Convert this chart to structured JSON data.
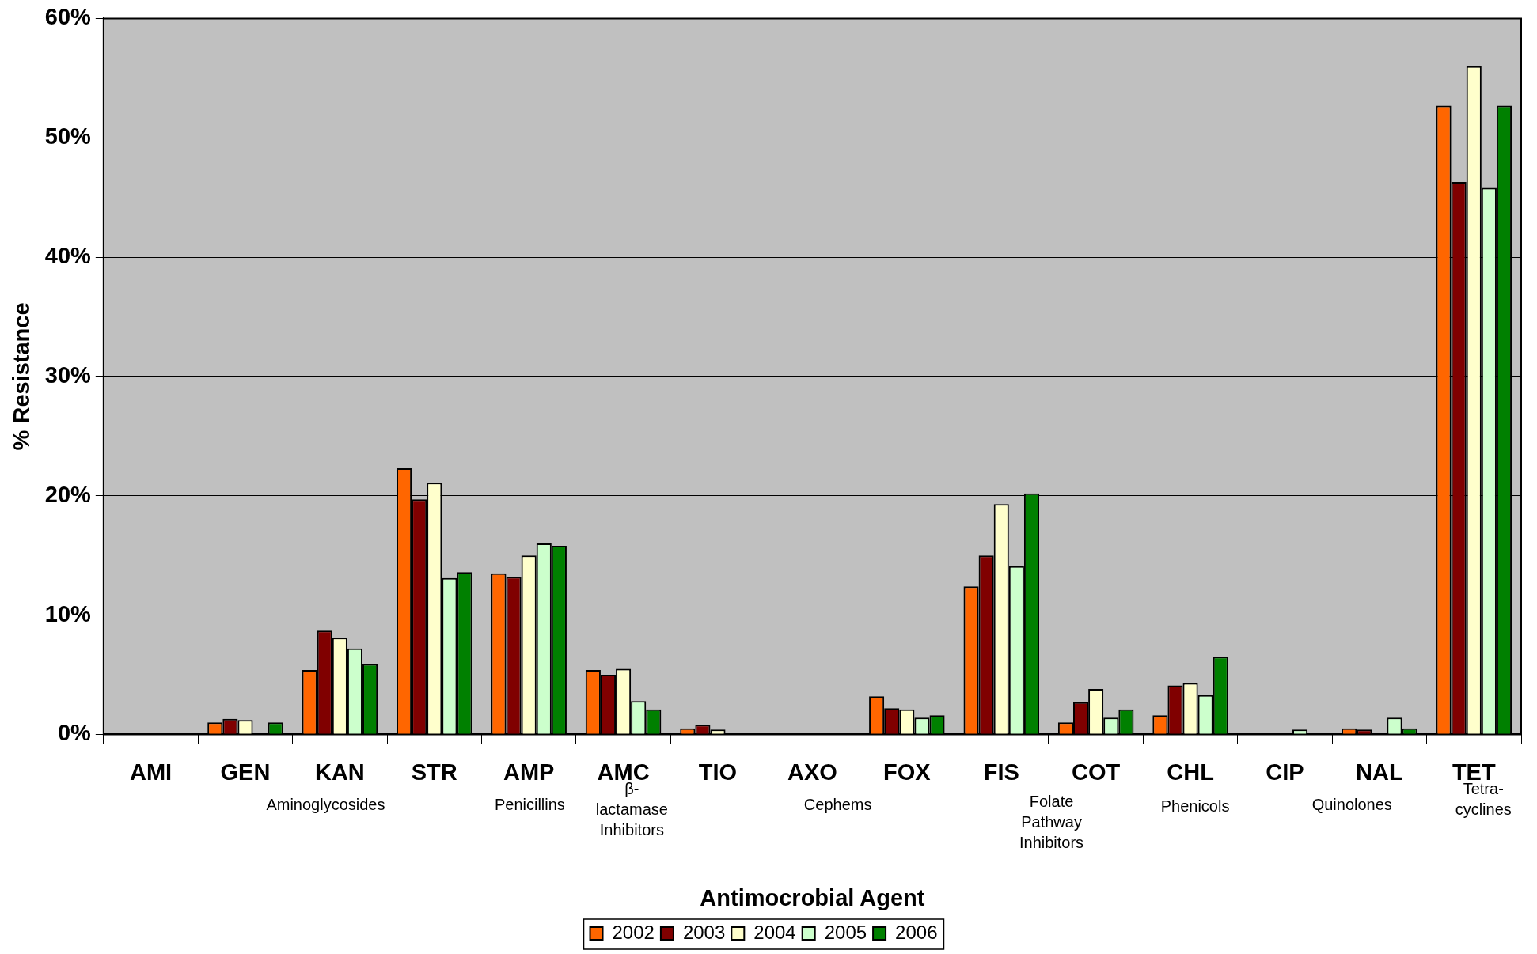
{
  "chart_data": {
    "type": "bar",
    "xlabel": "Antimocrobial Agent",
    "ylabel": "% Resistance",
    "categories": [
      "AMI",
      "GEN",
      "KAN",
      "STR",
      "AMP",
      "AMC",
      "TIO",
      "AXO",
      "FOX",
      "FIS",
      "COT",
      "CHL",
      "CIP",
      "NAL",
      "TET"
    ],
    "series": [
      {
        "name": "2002",
        "color": "#ff6600",
        "values": [
          0,
          1.0,
          5.4,
          22.3,
          13.5,
          5.4,
          0.5,
          0,
          3.2,
          12.4,
          1.0,
          1.6,
          0,
          0.5,
          52.7
        ]
      },
      {
        "name": "2003",
        "color": "#800000",
        "values": [
          0,
          1.3,
          8.7,
          19.7,
          13.2,
          5.0,
          0.8,
          0,
          2.2,
          15.0,
          2.7,
          4.1,
          0,
          0.4,
          46.3
        ]
      },
      {
        "name": "2004",
        "color": "#ffffcc",
        "values": [
          0,
          1.2,
          8.1,
          21.1,
          15.0,
          5.5,
          0.4,
          0,
          2.1,
          19.3,
          3.8,
          4.3,
          0,
          0,
          56.0
        ]
      },
      {
        "name": "2005",
        "color": "#ccffcc",
        "values": [
          0,
          0,
          7.2,
          13.1,
          16.0,
          2.8,
          0,
          0,
          1.4,
          14.1,
          1.4,
          3.3,
          0.4,
          1.4,
          45.8
        ]
      },
      {
        "name": "2006",
        "color": "#008000",
        "values": [
          0,
          1.0,
          5.9,
          13.6,
          15.8,
          2.1,
          0,
          0,
          1.6,
          20.2,
          2.1,
          6.5,
          0,
          0.5,
          52.7
        ]
      }
    ],
    "ylim": [
      0,
      60
    ],
    "yticks": [
      {
        "value": 0,
        "label": "0%"
      },
      {
        "value": 10,
        "label": "10%"
      },
      {
        "value": 20,
        "label": "20%"
      },
      {
        "value": 30,
        "label": "30%"
      },
      {
        "value": 40,
        "label": "40%"
      },
      {
        "value": 50,
        "label": "50%"
      },
      {
        "value": 60,
        "label": "60%"
      }
    ],
    "grid": "y",
    "legend": "bottom",
    "annotations": [
      "Aminoglycosides",
      "Penicillins",
      "β- lactamase Inhibitors",
      "Cephems",
      "Folate Pathway Inhibitors",
      "Phenicols",
      "Quinolones",
      "Tetra- cyclines"
    ]
  }
}
